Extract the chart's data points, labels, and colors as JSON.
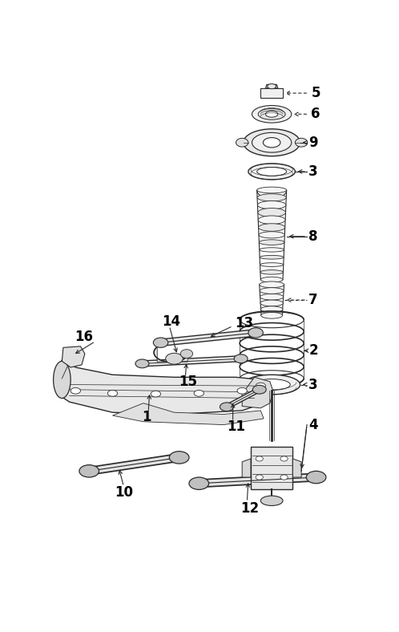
{
  "bg_color": "#ffffff",
  "line_color": "#2a2a2a",
  "label_color": "#000000",
  "fig_width": 4.98,
  "fig_height": 7.88,
  "dpi": 100
}
